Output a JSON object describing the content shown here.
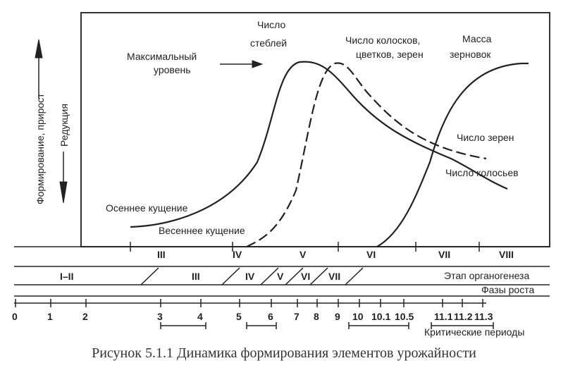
{
  "caption": "Рисунок 5.1.1 Динамика формирования элементов урожайности",
  "y_axis": {
    "label_left": "Формирование, прирост",
    "label_right": "Редукция"
  },
  "annotations": {
    "max_level_line1": "Максимальный",
    "max_level_line2": "уровень",
    "stems_line1": "Число",
    "stems_line2": "стеблей",
    "ears_flowers_line1": "Число колосков,",
    "ears_flowers_line2": "цветков, зерен",
    "grain_mass_line1": "Масса",
    "grain_mass_line2": "зерновок",
    "grains_count": "Число зерен",
    "ears_count": "Число колосьев",
    "autumn_tillering": "Осеннее кущение",
    "spring_tillering": "Весеннее кущение"
  },
  "stage_roman": [
    "III",
    "IV",
    "V",
    "VI",
    "VII",
    "VIII"
  ],
  "organogenesis": {
    "first_label": "I–II",
    "stages": [
      "III",
      "IV",
      "V",
      "VI",
      "VII"
    ],
    "row_label": "Этап органогенеза"
  },
  "growth_phases": {
    "row_label": "Фазы роста"
  },
  "critical_periods": {
    "ticks": [
      "0",
      "1",
      "2",
      "3",
      "4",
      "5",
      "6",
      "7",
      "8",
      "9",
      "10",
      "10.1",
      "10.5",
      "11.1",
      "11.2",
      "11.3"
    ],
    "row_label": "Критические периоды"
  },
  "colors": {
    "ink": "#222222",
    "frame": "#333333"
  }
}
